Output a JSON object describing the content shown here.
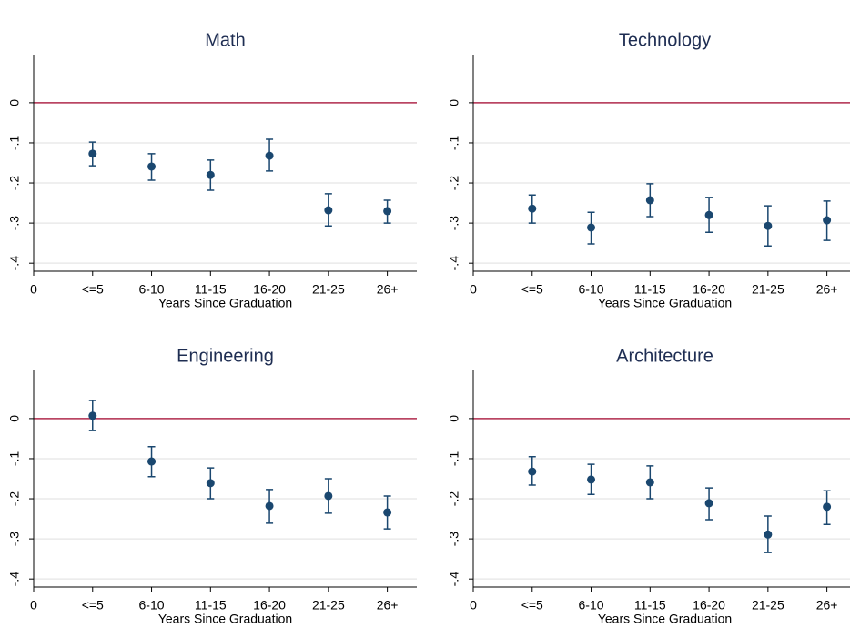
{
  "chart_data": [
    {
      "type": "errorbar",
      "title": "Math",
      "x_label": "Years Since Graduation",
      "x": [
        1,
        2,
        3,
        4,
        5,
        6
      ],
      "xticks": [
        0,
        {
          "value": 1,
          "label": "<=5"
        },
        {
          "value": 2,
          "label": "6-10"
        },
        {
          "value": 3,
          "label": "11-15"
        },
        {
          "value": 4,
          "label": "16-20"
        },
        {
          "value": 5,
          "label": "21-25"
        },
        {
          "value": 6,
          "label": "26+"
        }
      ],
      "xlim": [
        0,
        6.5
      ],
      "values": [
        -0.127,
        -0.159,
        -0.18,
        -0.132,
        -0.268,
        -0.27
      ],
      "lower": [
        -0.157,
        -0.193,
        -0.218,
        -0.17,
        -0.307,
        -0.3
      ],
      "upper": [
        -0.098,
        -0.127,
        -0.143,
        -0.091,
        -0.227,
        -0.243
      ],
      "color": "#1a476f",
      "ylim": [
        -0.42,
        0.12
      ],
      "yticks": [
        0,
        {
          "value": -0.1,
          "label": "-.1"
        },
        {
          "value": -0.2,
          "label": "-.2"
        },
        {
          "value": -0.3,
          "label": "-.3"
        },
        {
          "value": -0.4,
          "label": "-.4"
        }
      ],
      "grid": true,
      "reference_line": 0,
      "reference_color": "#b22d4f"
    },
    {
      "type": "errorbar",
      "title": "Technology",
      "x_label": "Years Since Graduation",
      "x": [
        1,
        2,
        3,
        4,
        5,
        6
      ],
      "xticks": [
        0,
        {
          "value": 1,
          "label": "<=5"
        },
        {
          "value": 2,
          "label": "6-10"
        },
        {
          "value": 3,
          "label": "11-15"
        },
        {
          "value": 4,
          "label": "16-20"
        },
        {
          "value": 5,
          "label": "21-25"
        },
        {
          "value": 6,
          "label": "26+"
        }
      ],
      "xlim": [
        0,
        6.5
      ],
      "values": [
        -0.264,
        -0.311,
        -0.243,
        -0.28,
        -0.307,
        -0.293
      ],
      "lower": [
        -0.3,
        -0.352,
        -0.284,
        -0.323,
        -0.357,
        -0.343
      ],
      "upper": [
        -0.23,
        -0.273,
        -0.202,
        -0.236,
        -0.257,
        -0.245
      ],
      "color": "#1a476f",
      "ylim": [
        -0.42,
        0.12
      ],
      "yticks": [
        0,
        {
          "value": -0.1,
          "label": "-.1"
        },
        {
          "value": -0.2,
          "label": "-.2"
        },
        {
          "value": -0.3,
          "label": "-.3"
        },
        {
          "value": -0.4,
          "label": "-.4"
        }
      ],
      "grid": true,
      "reference_line": 0,
      "reference_color": "#b22d4f"
    },
    {
      "type": "errorbar",
      "title": "Engineering",
      "x_label": "Years Since Graduation",
      "x": [
        1,
        2,
        3,
        4,
        5,
        6
      ],
      "xticks": [
        0,
        {
          "value": 1,
          "label": "<=5"
        },
        {
          "value": 2,
          "label": "6-10"
        },
        {
          "value": 3,
          "label": "11-15"
        },
        {
          "value": 4,
          "label": "16-20"
        },
        {
          "value": 5,
          "label": "21-25"
        },
        {
          "value": 6,
          "label": "26+"
        }
      ],
      "xlim": [
        0,
        6.5
      ],
      "values": [
        0.007,
        -0.107,
        -0.161,
        -0.218,
        -0.193,
        -0.234
      ],
      "lower": [
        -0.03,
        -0.145,
        -0.2,
        -0.261,
        -0.236,
        -0.275
      ],
      "upper": [
        0.045,
        -0.07,
        -0.123,
        -0.177,
        -0.15,
        -0.193
      ],
      "color": "#1a476f",
      "ylim": [
        -0.42,
        0.12
      ],
      "yticks": [
        0,
        {
          "value": -0.1,
          "label": "-.1"
        },
        {
          "value": -0.2,
          "label": "-.2"
        },
        {
          "value": -0.3,
          "label": "-.3"
        },
        {
          "value": -0.4,
          "label": "-.4"
        }
      ],
      "grid": true,
      "reference_line": 0,
      "reference_color": "#b22d4f"
    },
    {
      "type": "errorbar",
      "title": "Architecture",
      "x_label": "Years Since Graduation",
      "x": [
        1,
        2,
        3,
        4,
        5,
        6
      ],
      "xticks": [
        0,
        {
          "value": 1,
          "label": "<=5"
        },
        {
          "value": 2,
          "label": "6-10"
        },
        {
          "value": 3,
          "label": "11-15"
        },
        {
          "value": 4,
          "label": "16-20"
        },
        {
          "value": 5,
          "label": "21-25"
        },
        {
          "value": 6,
          "label": "26+"
        }
      ],
      "xlim": [
        0,
        6.5
      ],
      "values": [
        -0.132,
        -0.152,
        -0.159,
        -0.211,
        -0.289,
        -0.22
      ],
      "lower": [
        -0.166,
        -0.189,
        -0.2,
        -0.252,
        -0.334,
        -0.264
      ],
      "upper": [
        -0.095,
        -0.114,
        -0.118,
        -0.173,
        -0.243,
        -0.18
      ],
      "color": "#1a476f",
      "ylim": [
        -0.42,
        0.12
      ],
      "yticks": [
        0,
        {
          "value": -0.1,
          "label": "-.1"
        },
        {
          "value": -0.2,
          "label": "-.2"
        },
        {
          "value": -0.3,
          "label": "-.3"
        },
        {
          "value": -0.4,
          "label": "-.4"
        }
      ],
      "grid": true,
      "reference_line": 0,
      "reference_color": "#b22d4f"
    }
  ]
}
